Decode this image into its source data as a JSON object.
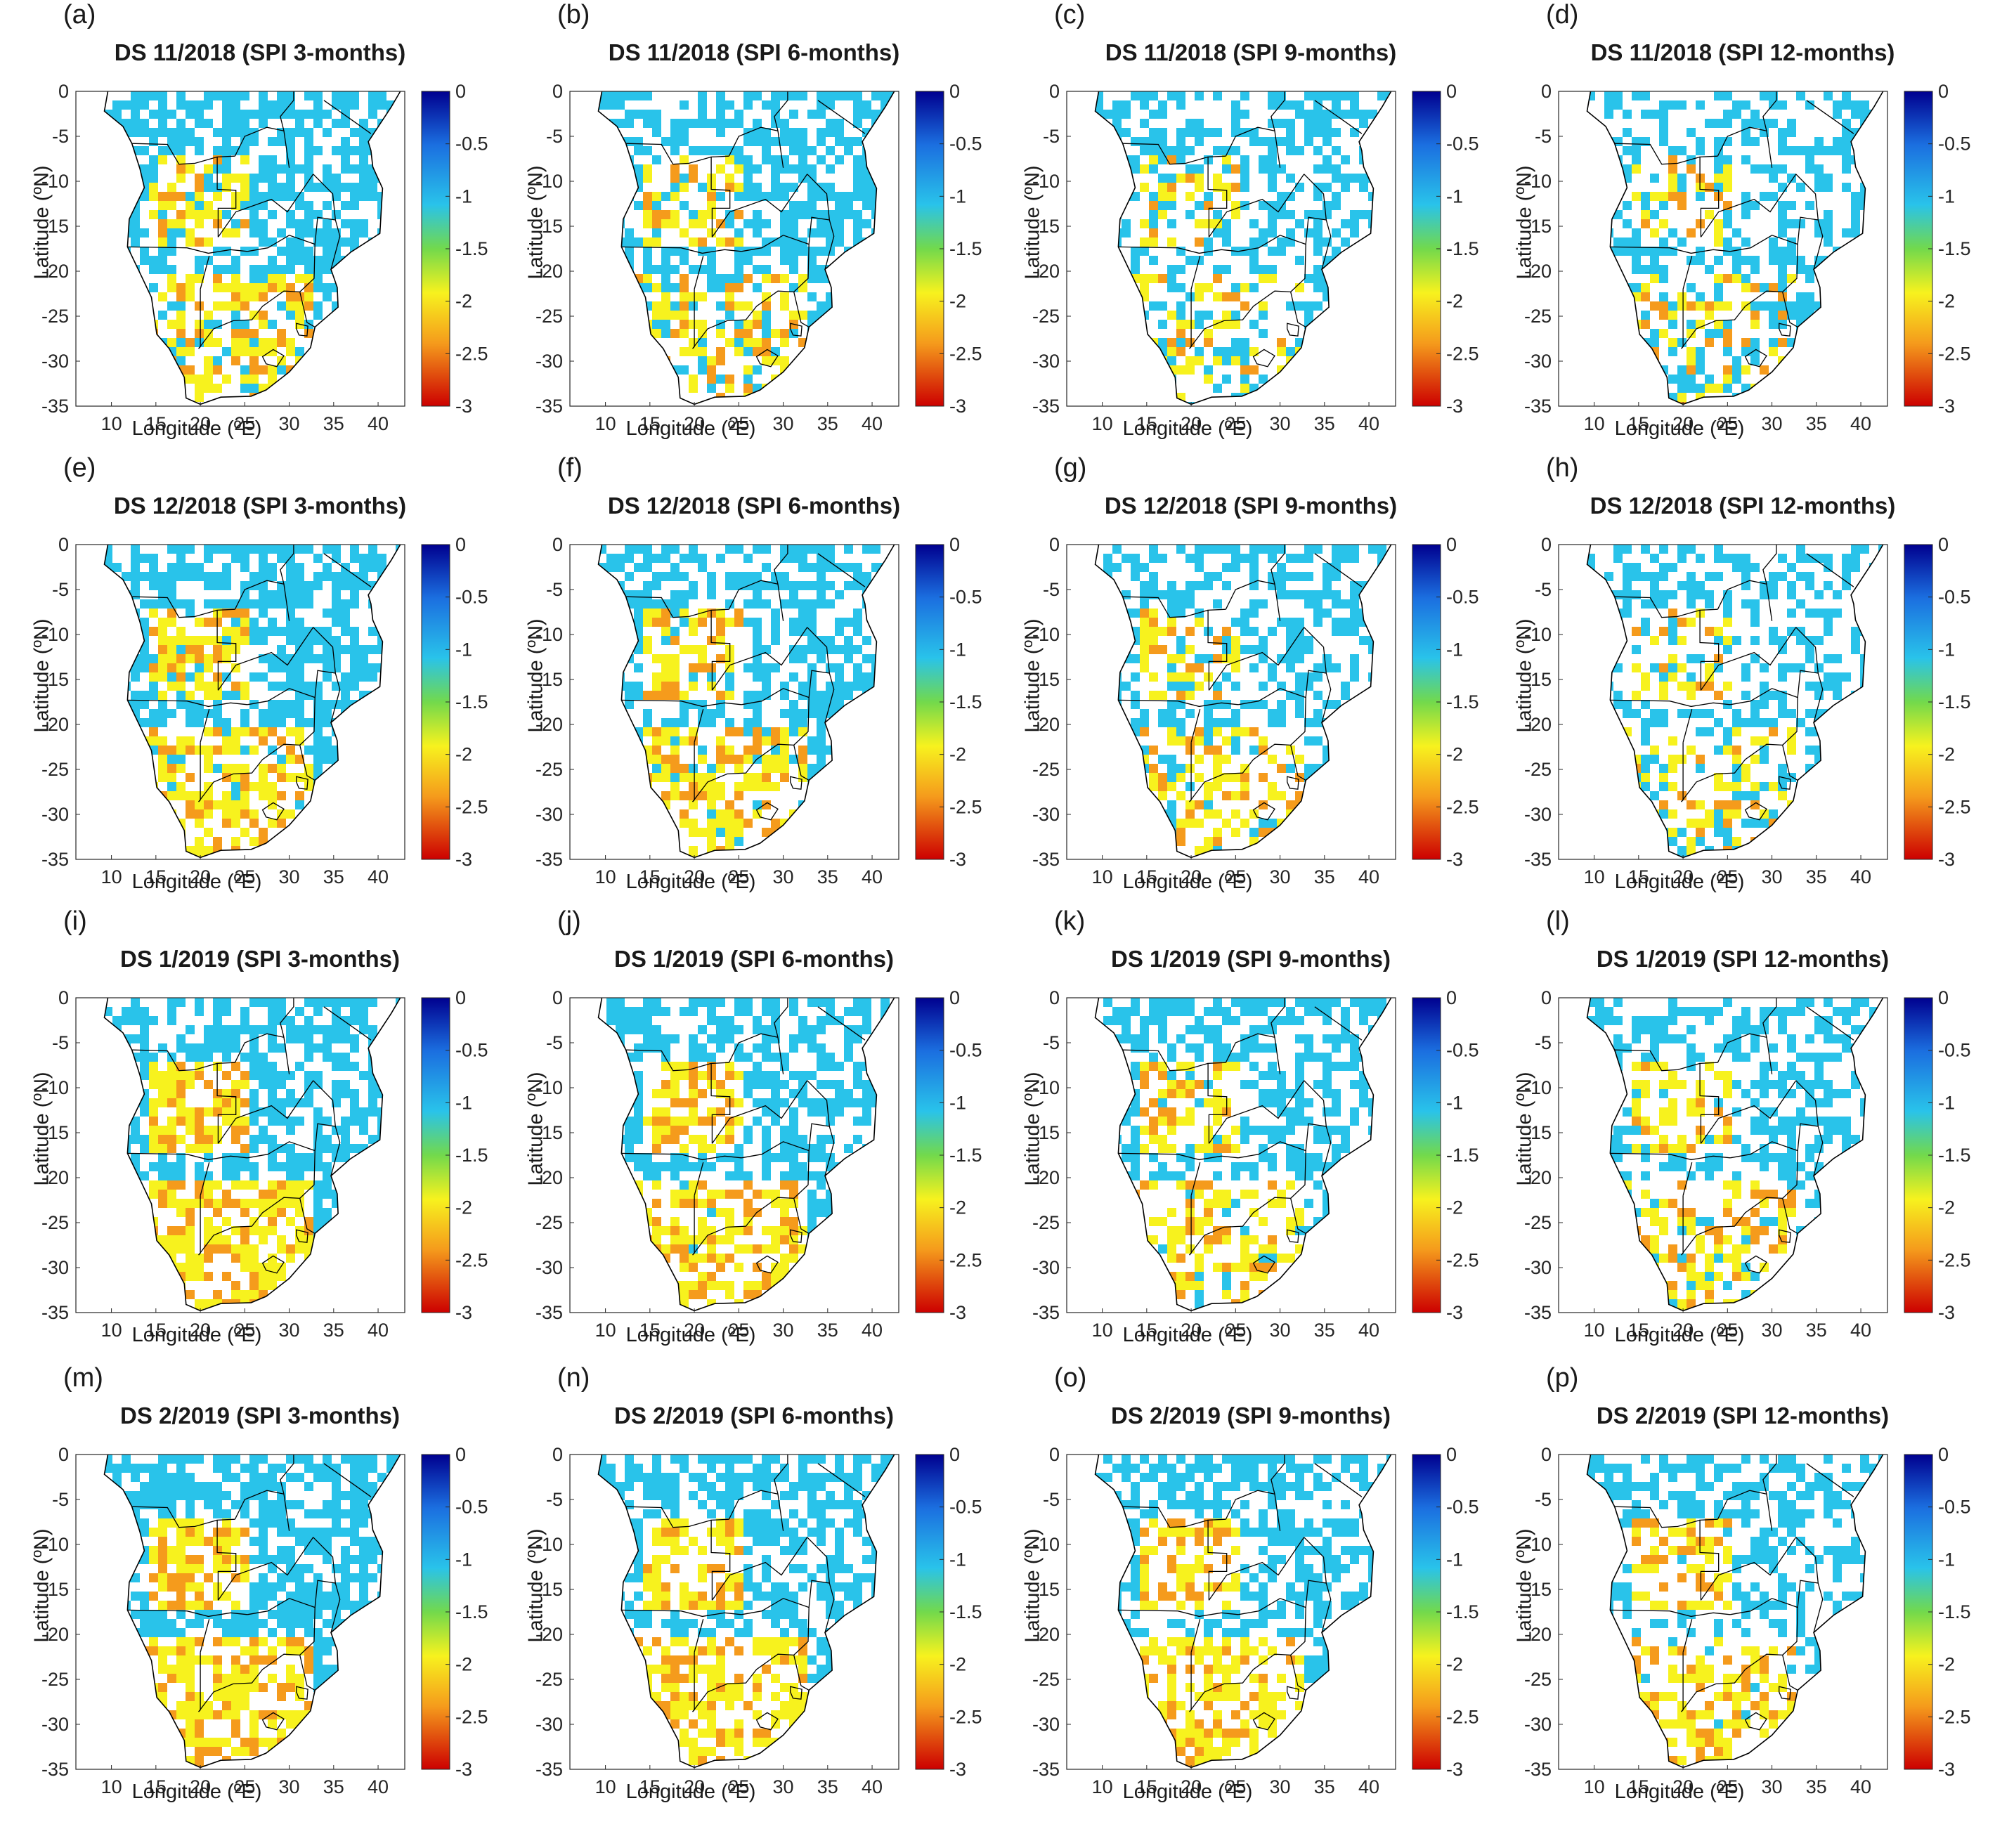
{
  "figure": {
    "xlabel": "Longitude (ºE)",
    "ylabel": "Latitude (ºN)",
    "x_ticks": [
      "10",
      "15",
      "20",
      "25",
      "30",
      "35",
      "40"
    ],
    "y_ticks": [
      "0",
      "-5",
      "-10",
      "-15",
      "-20",
      "-25",
      "-30",
      "-35"
    ],
    "colorbar_ticks": [
      "0",
      "-0.5",
      "-1",
      "-1.5",
      "-2",
      "-2.5",
      "-3"
    ],
    "colorbar_range": [
      -3,
      0
    ],
    "colors": {
      "deep_red": "#cc0000",
      "orange": "#f59b1c",
      "yellow": "#f7f21e",
      "green": "#72d94c",
      "cyan": "#29c3ea",
      "blue": "#1b6fe0",
      "navy": "#00008f",
      "border": "#000000"
    }
  },
  "panels": [
    {
      "letter": "(a)",
      "title": "DS 11/2018 (SPI 3-months)"
    },
    {
      "letter": "(b)",
      "title": "DS 11/2018 (SPI 6-months)"
    },
    {
      "letter": "(c)",
      "title": "DS 11/2018 (SPI 9-months)"
    },
    {
      "letter": "(d)",
      "title": "DS 11/2018 (SPI 12-months)"
    },
    {
      "letter": "(e)",
      "title": "DS 12/2018 (SPI 3-months)"
    },
    {
      "letter": "(f)",
      "title": "DS 12/2018 (SPI 6-months)"
    },
    {
      "letter": "(g)",
      "title": "DS 12/2018 (SPI 9-months)"
    },
    {
      "letter": "(h)",
      "title": "DS 12/2018 (SPI 12-months)"
    },
    {
      "letter": "(i)",
      "title": "DS 1/2019 (SPI 3-months)"
    },
    {
      "letter": "(j)",
      "title": "DS 1/2019 (SPI 6-months)"
    },
    {
      "letter": "(k)",
      "title": "DS 1/2019 (SPI 9-months)"
    },
    {
      "letter": "(l)",
      "title": "DS 1/2019 (SPI 12-months)"
    },
    {
      "letter": "(m)",
      "title": "DS 2/2019 (SPI 3-months)"
    },
    {
      "letter": "(n)",
      "title": "DS 2/2019 (SPI 6-months)"
    },
    {
      "letter": "(o)",
      "title": "DS 2/2019 (SPI 9-months)"
    },
    {
      "letter": "(p)",
      "title": "DS 2/2019 (SPI 12-months)"
    }
  ]
}
